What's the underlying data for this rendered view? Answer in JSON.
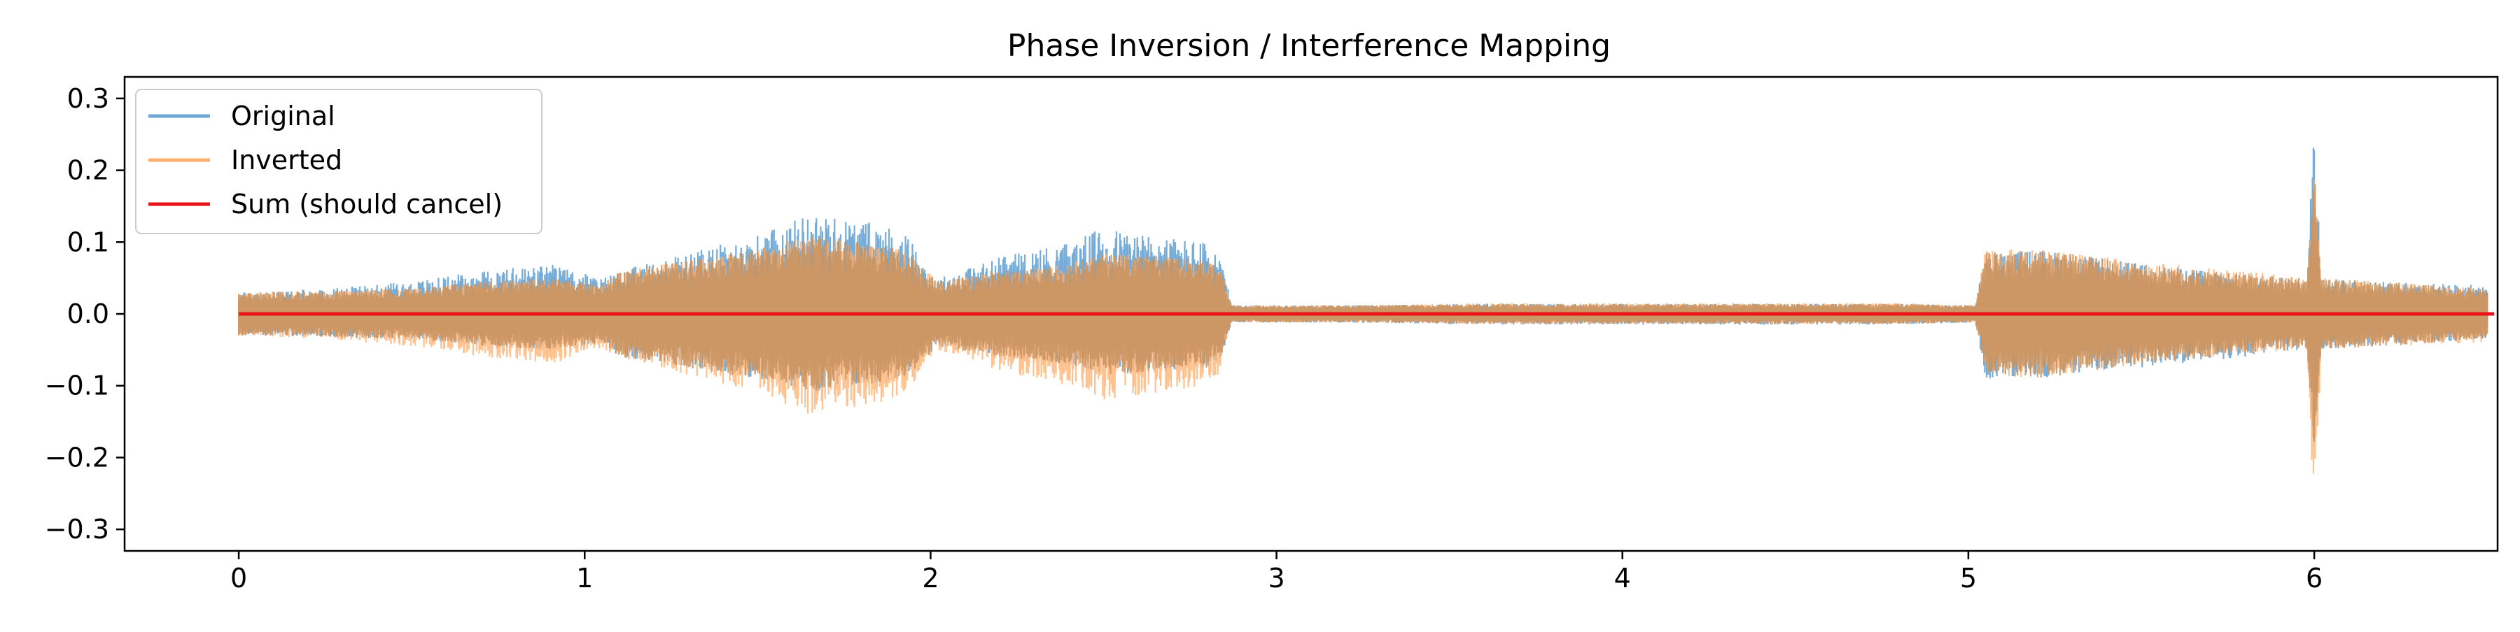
{
  "chart_data": {
    "type": "line",
    "title": "Phase Inversion / Interference Mapping",
    "xlabel": "",
    "ylabel": "",
    "xlim": [
      -0.33,
      6.53
    ],
    "ylim": [
      -0.33,
      0.33
    ],
    "x_ticks": [
      0,
      1,
      2,
      3,
      4,
      5,
      6
    ],
    "x_tick_labels": [
      "0",
      "1",
      "2",
      "3",
      "4",
      "5",
      "6"
    ],
    "y_ticks": [
      0.3,
      0.2,
      0.1,
      0.0,
      -0.1,
      -0.2,
      -0.3
    ],
    "y_tick_labels": [
      "0.3",
      "0.2",
      "0.1",
      "0.0",
      "−0.1",
      "−0.2",
      "−0.3"
    ],
    "grid": false,
    "legend_position": "upper-left",
    "colors": {
      "original": "#6fa8d6",
      "inverted": "#ffb06e",
      "overlap": "#c9935f",
      "sum": "#e8141a"
    },
    "series": [
      {
        "name": "Original",
        "role": "original",
        "description": "waveform amplitude envelope (positive peak / negative peak) over time",
        "x": [
          0.0,
          0.25,
          0.5,
          0.7,
          0.9,
          1.05,
          1.1,
          1.3,
          1.5,
          1.65,
          1.8,
          1.92,
          1.97,
          2.02,
          2.2,
          2.4,
          2.5,
          2.65,
          2.8,
          2.84,
          2.87,
          3.2,
          3.6,
          4.0,
          4.4,
          4.8,
          5.02,
          5.05,
          5.2,
          5.5,
          5.8,
          5.98,
          6.0,
          6.02,
          6.2,
          6.5
        ],
        "upper": [
          0.03,
          0.035,
          0.045,
          0.06,
          0.07,
          0.05,
          0.06,
          0.085,
          0.11,
          0.14,
          0.13,
          0.12,
          0.08,
          0.05,
          0.08,
          0.1,
          0.12,
          0.11,
          0.1,
          0.08,
          0.012,
          0.012,
          0.014,
          0.014,
          0.014,
          0.014,
          0.012,
          0.085,
          0.09,
          0.07,
          0.055,
          0.05,
          0.3,
          0.05,
          0.045,
          0.04
        ],
        "lower": [
          -0.03,
          -0.032,
          -0.035,
          -0.045,
          -0.05,
          -0.04,
          -0.06,
          -0.075,
          -0.09,
          -0.11,
          -0.1,
          -0.09,
          -0.07,
          -0.045,
          -0.06,
          -0.07,
          -0.085,
          -0.08,
          -0.075,
          -0.06,
          -0.012,
          -0.012,
          -0.015,
          -0.015,
          -0.015,
          -0.015,
          -0.012,
          -0.09,
          -0.09,
          -0.075,
          -0.06,
          -0.05,
          -0.2,
          -0.05,
          -0.045,
          -0.035
        ]
      },
      {
        "name": "Inverted",
        "role": "inverted",
        "description": "negated original waveform envelope",
        "x": [
          0.0,
          0.25,
          0.5,
          0.7,
          0.9,
          1.05,
          1.1,
          1.3,
          1.5,
          1.65,
          1.8,
          1.92,
          1.97,
          2.02,
          2.2,
          2.4,
          2.5,
          2.65,
          2.8,
          2.84,
          2.87,
          3.2,
          3.6,
          4.0,
          4.4,
          4.8,
          5.02,
          5.05,
          5.2,
          5.5,
          5.8,
          5.98,
          6.0,
          6.02,
          6.2,
          6.5
        ],
        "upper": [
          0.03,
          0.032,
          0.035,
          0.045,
          0.05,
          0.04,
          0.06,
          0.075,
          0.09,
          0.11,
          0.1,
          0.09,
          0.07,
          0.045,
          0.06,
          0.07,
          0.085,
          0.08,
          0.075,
          0.06,
          0.012,
          0.012,
          0.015,
          0.015,
          0.015,
          0.015,
          0.012,
          0.09,
          0.09,
          0.075,
          0.06,
          0.05,
          0.2,
          0.05,
          0.045,
          0.035
        ],
        "lower": [
          -0.03,
          -0.035,
          -0.045,
          -0.06,
          -0.07,
          -0.05,
          -0.06,
          -0.085,
          -0.11,
          -0.14,
          -0.13,
          -0.12,
          -0.08,
          -0.05,
          -0.08,
          -0.1,
          -0.12,
          -0.11,
          -0.1,
          -0.08,
          -0.012,
          -0.012,
          -0.014,
          -0.014,
          -0.014,
          -0.014,
          -0.012,
          -0.085,
          -0.09,
          -0.07,
          -0.055,
          -0.05,
          -0.3,
          -0.05,
          -0.045,
          -0.04
        ]
      },
      {
        "name": "Sum (should cancel)",
        "role": "sum",
        "x": [
          0.0,
          6.52
        ],
        "y": [
          0.0,
          0.0
        ]
      }
    ]
  }
}
